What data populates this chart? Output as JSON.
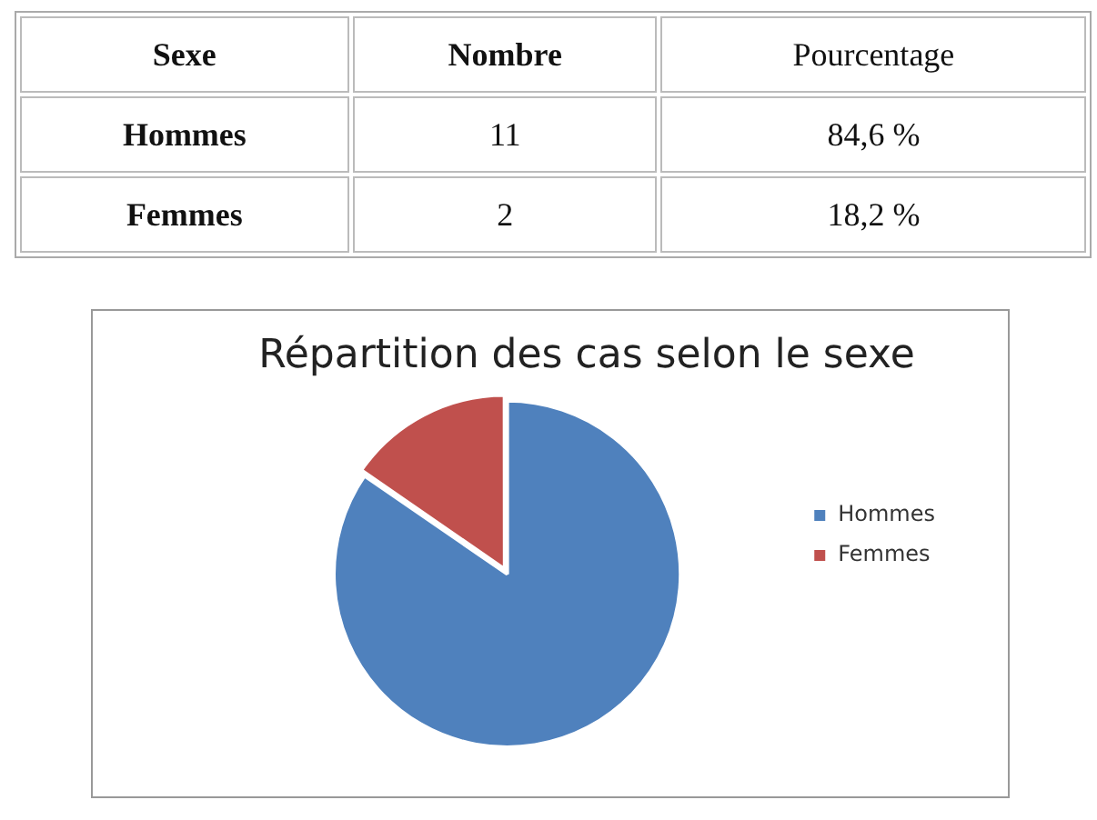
{
  "chart_data": [
    {
      "type": "other",
      "annotations": [
        "Sexe",
        "Nombre",
        "Pourcentage",
        "Hommes",
        "11",
        "84,6 %",
        "Femmes",
        "2",
        "18,2 %"
      ]
    },
    {
      "type": "pie",
      "title": "Répartition des cas selon le sexe",
      "categories": [
        "Hommes",
        "Femmes"
      ],
      "values": [
        84.6,
        15.4
      ],
      "colors": [
        "#4f81bd",
        "#c0504d"
      ],
      "legend": "right"
    }
  ]
}
